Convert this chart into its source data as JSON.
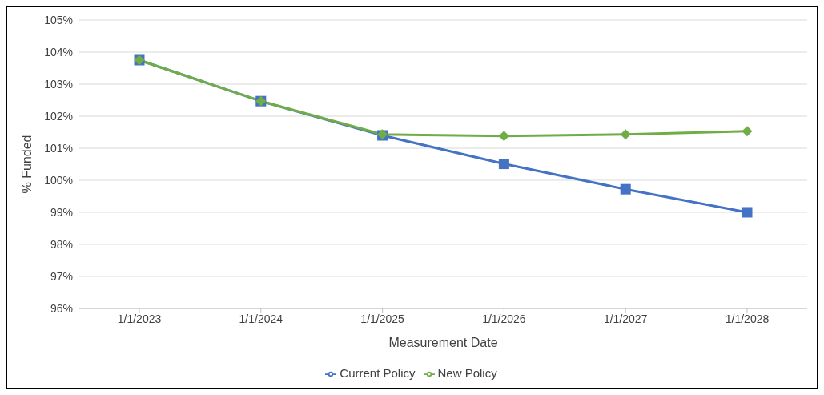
{
  "chart_data": {
    "type": "line",
    "xlabel": "Measurement Date",
    "ylabel": "% Funded",
    "categories": [
      "1/1/2023",
      "1/1/2024",
      "1/1/2025",
      "1/1/2026",
      "1/1/2027",
      "1/1/2028"
    ],
    "series": [
      {
        "name": "Current Policy",
        "color": "#4472c4",
        "marker": "square",
        "values": [
          103.75,
          102.47,
          101.4,
          100.51,
          99.72,
          99.0
        ]
      },
      {
        "name": "New Policy",
        "color": "#70ad47",
        "marker": "diamond",
        "values": [
          103.75,
          102.47,
          101.43,
          101.38,
          101.43,
          101.53
        ]
      }
    ],
    "ylim": [
      96,
      105
    ],
    "yticks": [
      {
        "value": 96,
        "label": "96%"
      },
      {
        "value": 97,
        "label": "97%"
      },
      {
        "value": 98,
        "label": "98%"
      },
      {
        "value": 99,
        "label": "99%"
      },
      {
        "value": 100,
        "label": "100%"
      },
      {
        "value": 101,
        "label": "101%"
      },
      {
        "value": 102,
        "label": "102%"
      },
      {
        "value": 103,
        "label": "103%"
      },
      {
        "value": 104,
        "label": "104%"
      },
      {
        "value": 105,
        "label": "105%"
      }
    ],
    "grid": "y",
    "legend": "bottom",
    "line_style": "solid"
  }
}
